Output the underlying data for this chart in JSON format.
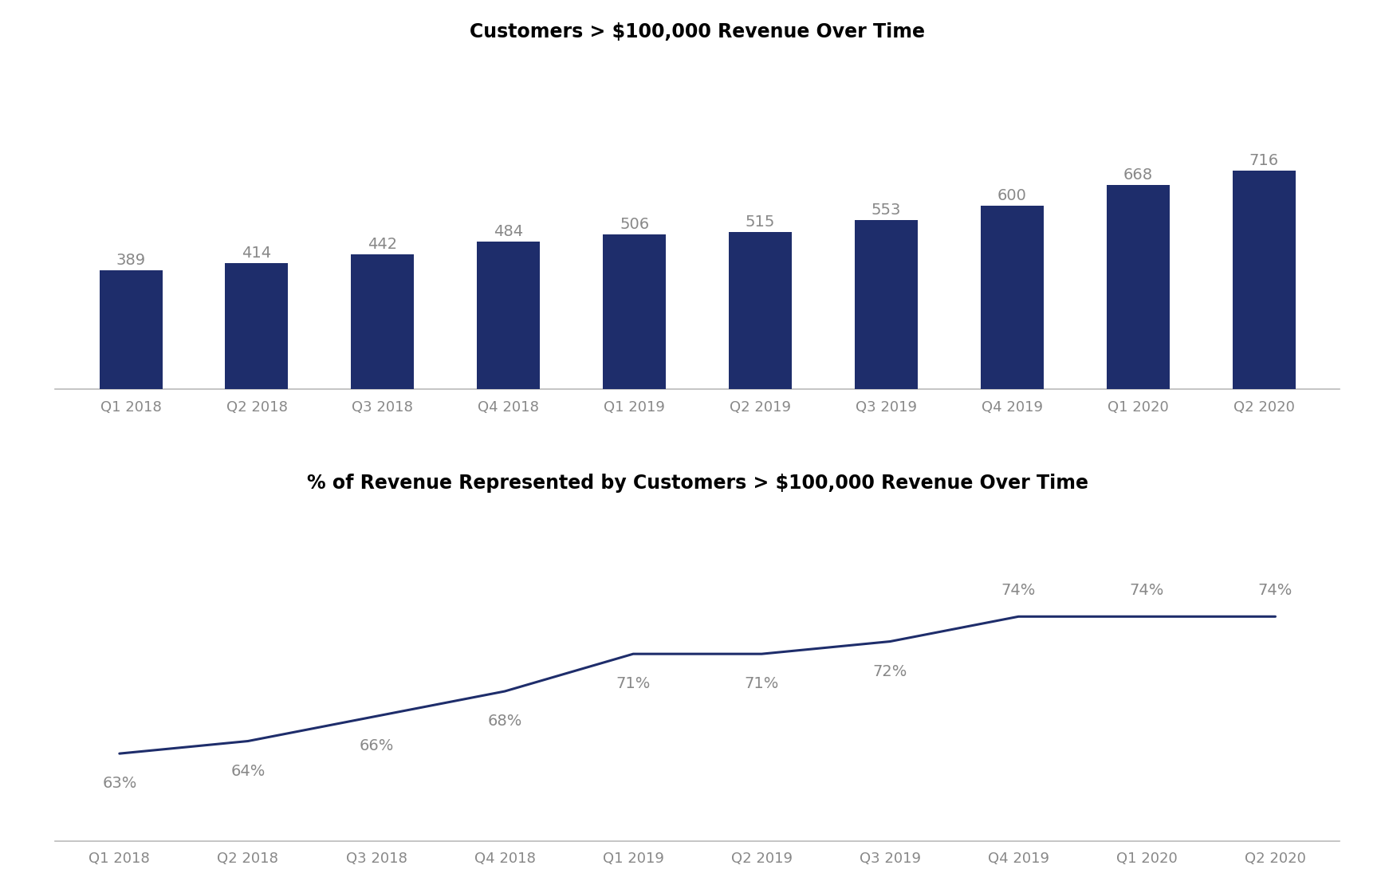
{
  "bar_categories": [
    "Q1 2018",
    "Q2 2018",
    "Q3 2018",
    "Q4 2018",
    "Q1 2019",
    "Q2 2019",
    "Q3 2019",
    "Q4 2019",
    "Q1 2020",
    "Q2 2020"
  ],
  "bar_values": [
    389,
    414,
    442,
    484,
    506,
    515,
    553,
    600,
    668,
    716
  ],
  "bar_color": "#1e2d6b",
  "bar_title": "Customers > $100,000 Revenue Over Time",
  "line_categories": [
    "Q1 2018",
    "Q2 2018",
    "Q3 2018",
    "Q4 2018",
    "Q1 2019",
    "Q2 2019",
    "Q3 2019",
    "Q4 2019",
    "Q1 2020",
    "Q2 2020"
  ],
  "line_values": [
    63,
    64,
    66,
    68,
    71,
    71,
    72,
    74,
    74,
    74
  ],
  "line_color": "#1e2d6b",
  "line_title": "% of Revenue Represented by Customers > $100,000 Revenue Over Time",
  "bar_label_fontsize": 14,
  "tick_label_fontsize": 13,
  "title_fontsize": 17,
  "line_label_fontsize": 14,
  "background_color": "#ffffff",
  "bar_ylim": [
    0,
    1100
  ],
  "line_ylim": [
    56,
    83
  ],
  "bar_label_offsets": [
    8,
    8,
    8,
    8,
    8,
    8,
    8,
    8,
    8,
    8
  ],
  "line_label_dx": [
    0.0,
    0.0,
    0.0,
    0.0,
    0.0,
    0.0,
    0.0,
    0.0,
    0.0,
    0.0
  ],
  "line_label_dy": [
    -1.8,
    -1.8,
    -1.8,
    -1.8,
    -1.8,
    -1.8,
    -1.8,
    1.5,
    1.5,
    1.5
  ],
  "line_label_va": [
    "top",
    "top",
    "top",
    "top",
    "top",
    "top",
    "top",
    "bottom",
    "bottom",
    "bottom"
  ]
}
